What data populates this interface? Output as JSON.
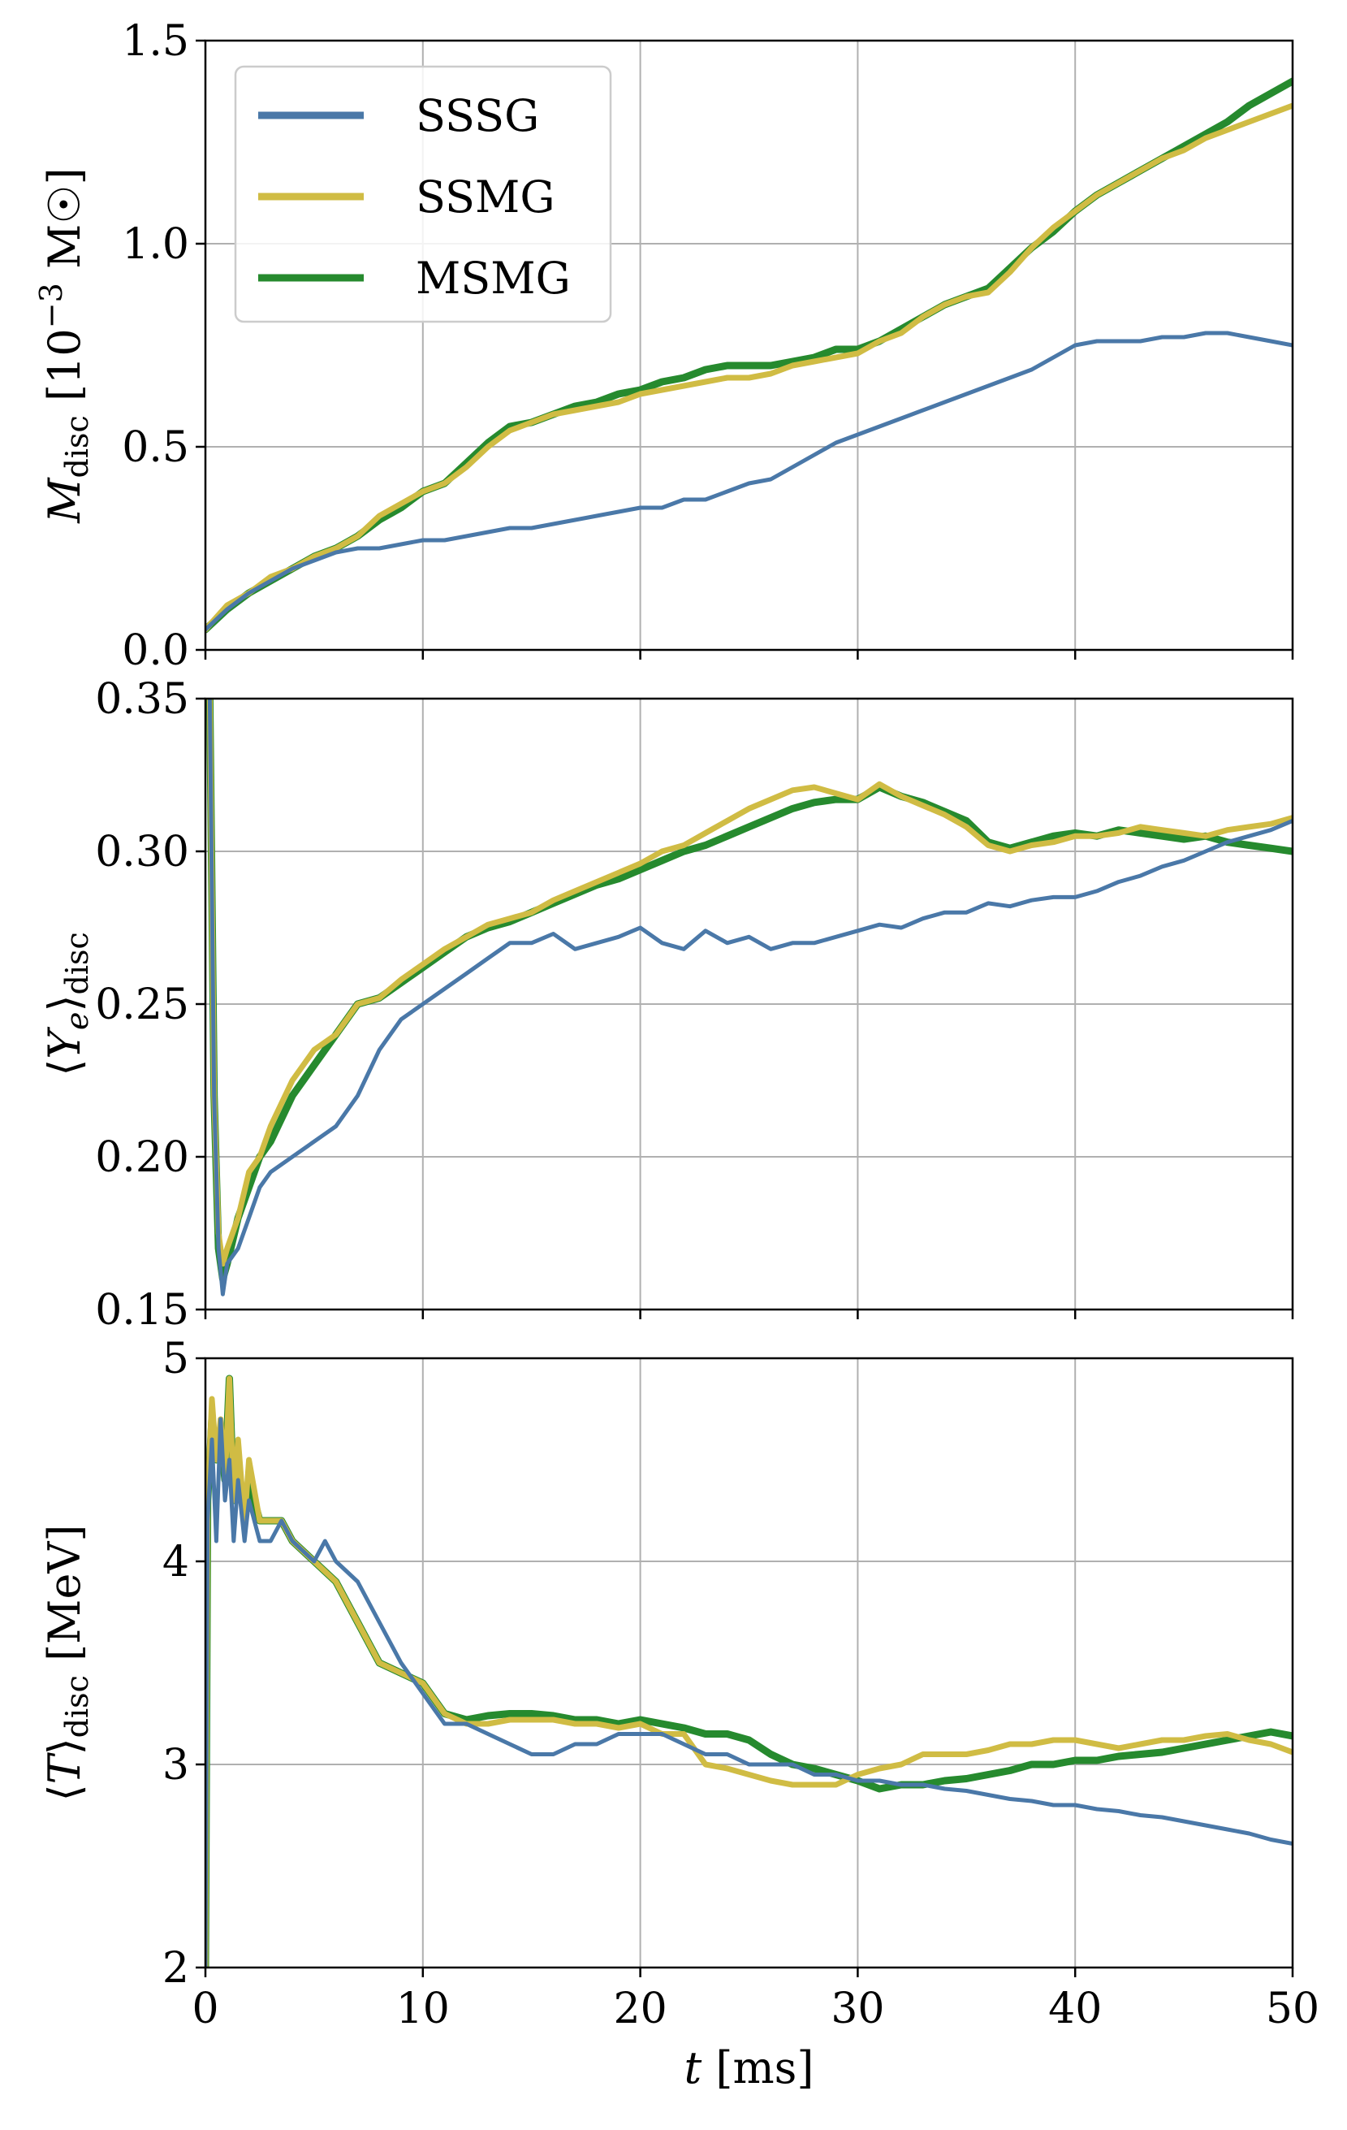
{
  "chart_data": [
    {
      "type": "line",
      "ylabel": "M_disc [10^-3 M☉]",
      "ylabel_parts": {
        "sym": "M",
        "sub": "disc",
        "unit_open": " [10",
        "unit_exp": "−3",
        "unit_close": " M☉]"
      },
      "xlim": [
        0,
        50
      ],
      "ylim": [
        0.0,
        1.5
      ],
      "yticks": [
        "0.0",
        "0.5",
        "1.0",
        "1.5"
      ],
      "xticks": [
        "0",
        "10",
        "20",
        "30",
        "40",
        "50"
      ],
      "grid": true,
      "legend": {
        "placement": "top-left",
        "entries": [
          "SSSG",
          "SSMG",
          "MSMG"
        ]
      },
      "series": [
        {
          "name": "SSSG",
          "x": [
            0,
            1,
            2,
            3,
            4,
            5,
            6,
            7,
            8,
            9,
            10,
            11,
            12,
            13,
            14,
            15,
            16,
            17,
            18,
            19,
            20,
            21,
            22,
            23,
            24,
            25,
            26,
            27,
            28,
            29,
            30,
            31,
            32,
            33,
            34,
            35,
            36,
            37,
            38,
            39,
            40,
            41,
            42,
            43,
            44,
            45,
            46,
            47,
            48,
            49,
            50
          ],
          "y": [
            0.05,
            0.1,
            0.14,
            0.17,
            0.2,
            0.22,
            0.24,
            0.25,
            0.25,
            0.26,
            0.27,
            0.27,
            0.28,
            0.29,
            0.3,
            0.3,
            0.31,
            0.32,
            0.33,
            0.34,
            0.35,
            0.35,
            0.37,
            0.37,
            0.39,
            0.41,
            0.42,
            0.45,
            0.48,
            0.51,
            0.53,
            0.55,
            0.57,
            0.59,
            0.61,
            0.63,
            0.65,
            0.67,
            0.69,
            0.72,
            0.75,
            0.76,
            0.76,
            0.76,
            0.77,
            0.77,
            0.78,
            0.78,
            0.77,
            0.76,
            0.75
          ]
        },
        {
          "name": "SSMG",
          "x": [
            0,
            1,
            2,
            3,
            4,
            5,
            6,
            7,
            8,
            9,
            10,
            11,
            12,
            13,
            14,
            15,
            16,
            17,
            18,
            19,
            20,
            21,
            22,
            23,
            24,
            25,
            26,
            27,
            28,
            29,
            30,
            31,
            32,
            33,
            34,
            35,
            36,
            37,
            38,
            39,
            40,
            41,
            42,
            43,
            44,
            45,
            46,
            47,
            48,
            49,
            50
          ],
          "y": [
            0.05,
            0.11,
            0.14,
            0.18,
            0.2,
            0.23,
            0.25,
            0.28,
            0.33,
            0.36,
            0.39,
            0.41,
            0.45,
            0.5,
            0.54,
            0.56,
            0.58,
            0.59,
            0.6,
            0.61,
            0.63,
            0.64,
            0.65,
            0.66,
            0.67,
            0.67,
            0.68,
            0.7,
            0.71,
            0.72,
            0.73,
            0.76,
            0.78,
            0.82,
            0.85,
            0.87,
            0.88,
            0.93,
            0.99,
            1.04,
            1.08,
            1.12,
            1.15,
            1.18,
            1.21,
            1.23,
            1.26,
            1.28,
            1.3,
            1.32,
            1.34
          ]
        },
        {
          "name": "MSMG",
          "x": [
            0,
            1,
            2,
            3,
            4,
            5,
            6,
            7,
            8,
            9,
            10,
            11,
            12,
            13,
            14,
            15,
            16,
            17,
            18,
            19,
            20,
            21,
            22,
            23,
            24,
            25,
            26,
            27,
            28,
            29,
            30,
            31,
            32,
            33,
            34,
            35,
            36,
            37,
            38,
            39,
            40,
            41,
            42,
            43,
            44,
            45,
            46,
            47,
            48,
            49,
            50
          ],
          "y": [
            0.05,
            0.1,
            0.14,
            0.17,
            0.2,
            0.23,
            0.25,
            0.28,
            0.32,
            0.35,
            0.39,
            0.41,
            0.46,
            0.51,
            0.55,
            0.56,
            0.58,
            0.6,
            0.61,
            0.63,
            0.64,
            0.66,
            0.67,
            0.69,
            0.7,
            0.7,
            0.7,
            0.71,
            0.72,
            0.74,
            0.74,
            0.76,
            0.79,
            0.82,
            0.85,
            0.87,
            0.89,
            0.94,
            0.99,
            1.03,
            1.08,
            1.12,
            1.15,
            1.18,
            1.21,
            1.24,
            1.27,
            1.3,
            1.34,
            1.37,
            1.4
          ]
        }
      ]
    },
    {
      "type": "line",
      "ylabel": "⟨Y_e⟩_disc",
      "ylabel_parts": {
        "sym": "Y",
        "sub_e": "e",
        "sub": "disc"
      },
      "xlim": [
        0,
        50
      ],
      "ylim": [
        0.15,
        0.35
      ],
      "yticks": [
        "0.15",
        "0.20",
        "0.25",
        "0.30",
        "0.35"
      ],
      "grid": true,
      "series": [
        {
          "name": "SSSG",
          "x": [
            0.2,
            0.4,
            0.6,
            0.8,
            1,
            1.5,
            2,
            2.5,
            3,
            4,
            5,
            6,
            7,
            8,
            9,
            10,
            11,
            12,
            13,
            14,
            15,
            16,
            17,
            18,
            19,
            20,
            21,
            22,
            23,
            24,
            25,
            26,
            27,
            28,
            29,
            30,
            31,
            32,
            33,
            34,
            35,
            36,
            37,
            38,
            39,
            40,
            41,
            42,
            43,
            44,
            45,
            46,
            47,
            48,
            49,
            50
          ],
          "y": [
            0.35,
            0.22,
            0.17,
            0.155,
            0.165,
            0.17,
            0.18,
            0.19,
            0.195,
            0.2,
            0.205,
            0.21,
            0.22,
            0.235,
            0.245,
            0.25,
            0.255,
            0.26,
            0.265,
            0.27,
            0.27,
            0.273,
            0.268,
            0.27,
            0.272,
            0.275,
            0.27,
            0.268,
            0.274,
            0.27,
            0.272,
            0.268,
            0.27,
            0.27,
            0.272,
            0.274,
            0.276,
            0.275,
            0.278,
            0.28,
            0.28,
            0.283,
            0.282,
            0.284,
            0.285,
            0.285,
            0.287,
            0.29,
            0.292,
            0.295,
            0.297,
            0.3,
            0.303,
            0.305,
            0.307,
            0.31
          ]
        },
        {
          "name": "SSMG",
          "x": [
            0.2,
            0.4,
            0.6,
            0.8,
            1,
            1.5,
            2,
            2.5,
            3,
            4,
            5,
            6,
            7,
            8,
            9,
            10,
            11,
            12,
            13,
            14,
            15,
            16,
            17,
            18,
            19,
            20,
            21,
            22,
            23,
            24,
            25,
            26,
            27,
            28,
            29,
            30,
            31,
            32,
            33,
            34,
            35,
            36,
            37,
            38,
            39,
            40,
            41,
            42,
            43,
            44,
            45,
            46,
            47,
            48,
            49,
            50
          ],
          "y": [
            0.35,
            0.22,
            0.175,
            0.165,
            0.17,
            0.18,
            0.195,
            0.2,
            0.21,
            0.225,
            0.235,
            0.24,
            0.25,
            0.252,
            0.258,
            0.263,
            0.268,
            0.272,
            0.276,
            0.278,
            0.28,
            0.284,
            0.287,
            0.29,
            0.293,
            0.296,
            0.3,
            0.302,
            0.306,
            0.31,
            0.314,
            0.317,
            0.32,
            0.321,
            0.319,
            0.317,
            0.322,
            0.318,
            0.315,
            0.312,
            0.308,
            0.302,
            0.3,
            0.302,
            0.303,
            0.305,
            0.305,
            0.306,
            0.308,
            0.307,
            0.306,
            0.305,
            0.307,
            0.308,
            0.309,
            0.311
          ]
        },
        {
          "name": "MSMG",
          "x": [
            0.2,
            0.4,
            0.6,
            0.8,
            1,
            1.5,
            2,
            2.5,
            3,
            4,
            5,
            6,
            7,
            8,
            9,
            10,
            11,
            12,
            13,
            14,
            15,
            16,
            17,
            18,
            19,
            20,
            21,
            22,
            23,
            24,
            25,
            26,
            27,
            28,
            29,
            30,
            31,
            32,
            33,
            34,
            35,
            36,
            37,
            38,
            39,
            40,
            41,
            42,
            43,
            44,
            45,
            46,
            47,
            48,
            49,
            50
          ],
          "y": [
            0.35,
            0.22,
            0.17,
            0.16,
            0.165,
            0.18,
            0.19,
            0.2,
            0.205,
            0.22,
            0.23,
            0.24,
            0.25,
            0.252,
            0.257,
            0.262,
            0.267,
            0.272,
            0.275,
            0.277,
            0.28,
            0.283,
            0.286,
            0.289,
            0.291,
            0.294,
            0.297,
            0.3,
            0.302,
            0.305,
            0.308,
            0.311,
            0.314,
            0.316,
            0.317,
            0.317,
            0.321,
            0.318,
            0.316,
            0.313,
            0.31,
            0.303,
            0.301,
            0.303,
            0.305,
            0.306,
            0.305,
            0.307,
            0.306,
            0.305,
            0.304,
            0.305,
            0.303,
            0.302,
            0.301,
            0.3
          ]
        }
      ]
    },
    {
      "type": "line",
      "ylabel": "⟨T⟩_disc [MeV]",
      "ylabel_parts": {
        "sym": "T",
        "sub": "disc",
        "unit": " [MeV]"
      },
      "xlabel": "t [ms]",
      "xlabel_parts": {
        "sym": "t",
        "unit": " [ms]"
      },
      "xlim": [
        0,
        50
      ],
      "ylim": [
        2,
        5
      ],
      "yticks": [
        "2",
        "3",
        "4",
        "5"
      ],
      "xticks": [
        "0",
        "10",
        "20",
        "30",
        "40",
        "50"
      ],
      "grid": true,
      "series": [
        {
          "name": "SSSG",
          "x": [
            0,
            0.1,
            0.3,
            0.5,
            0.7,
            0.9,
            1.1,
            1.3,
            1.5,
            1.8,
            2,
            2.5,
            3,
            3.5,
            4,
            5,
            5.5,
            6,
            7,
            8,
            9,
            10,
            11,
            12,
            13,
            14,
            15,
            16,
            17,
            18,
            19,
            20,
            21,
            22,
            23,
            24,
            25,
            26,
            27,
            28,
            29,
            30,
            31,
            32,
            33,
            34,
            35,
            36,
            37,
            38,
            39,
            40,
            41,
            42,
            43,
            44,
            45,
            46,
            47,
            48,
            49,
            50
          ],
          "y": [
            2.0,
            4.2,
            4.6,
            4.1,
            4.7,
            4.3,
            4.5,
            4.1,
            4.4,
            4.1,
            4.3,
            4.1,
            4.1,
            4.2,
            4.1,
            4.0,
            4.1,
            4.0,
            3.9,
            3.7,
            3.5,
            3.35,
            3.2,
            3.2,
            3.15,
            3.1,
            3.05,
            3.05,
            3.1,
            3.1,
            3.15,
            3.15,
            3.15,
            3.1,
            3.05,
            3.05,
            3.0,
            3.0,
            3.0,
            2.95,
            2.95,
            2.92,
            2.92,
            2.9,
            2.9,
            2.88,
            2.87,
            2.85,
            2.83,
            2.82,
            2.8,
            2.8,
            2.78,
            2.77,
            2.75,
            2.74,
            2.72,
            2.7,
            2.68,
            2.66,
            2.63,
            2.61
          ]
        },
        {
          "name": "SSMG",
          "x": [
            0,
            0.1,
            0.3,
            0.5,
            0.7,
            0.9,
            1.1,
            1.3,
            1.5,
            1.8,
            2,
            2.5,
            3,
            3.5,
            4,
            5,
            6,
            7,
            8,
            9,
            10,
            11,
            12,
            13,
            14,
            15,
            16,
            17,
            18,
            19,
            20,
            21,
            22,
            23,
            24,
            25,
            26,
            27,
            28,
            29,
            30,
            31,
            32,
            33,
            34,
            35,
            36,
            37,
            38,
            39,
            40,
            41,
            42,
            43,
            44,
            45,
            46,
            47,
            48,
            49,
            50
          ],
          "y": [
            2.0,
            4.3,
            4.8,
            4.5,
            4.7,
            4.4,
            4.9,
            4.3,
            4.6,
            4.2,
            4.5,
            4.2,
            4.2,
            4.2,
            4.1,
            4.0,
            3.9,
            3.7,
            3.5,
            3.45,
            3.4,
            3.25,
            3.2,
            3.2,
            3.22,
            3.22,
            3.22,
            3.2,
            3.2,
            3.18,
            3.2,
            3.15,
            3.15,
            3.0,
            2.98,
            2.95,
            2.92,
            2.9,
            2.9,
            2.9,
            2.95,
            2.98,
            3.0,
            3.05,
            3.05,
            3.05,
            3.07,
            3.1,
            3.1,
            3.12,
            3.12,
            3.1,
            3.08,
            3.1,
            3.12,
            3.12,
            3.14,
            3.15,
            3.12,
            3.1,
            3.06
          ]
        },
        {
          "name": "MSMG",
          "x": [
            0,
            0.1,
            0.3,
            0.5,
            0.7,
            0.9,
            1.1,
            1.3,
            1.5,
            1.8,
            2,
            2.5,
            3,
            3.5,
            4,
            5,
            6,
            7,
            8,
            9,
            10,
            11,
            12,
            13,
            14,
            15,
            16,
            17,
            18,
            19,
            20,
            21,
            22,
            23,
            24,
            25,
            26,
            27,
            28,
            29,
            30,
            31,
            32,
            33,
            34,
            35,
            36,
            37,
            38,
            39,
            40,
            41,
            42,
            43,
            44,
            45,
            46,
            47,
            48,
            49,
            50
          ],
          "y": [
            2.0,
            4.3,
            4.7,
            4.5,
            4.6,
            4.4,
            4.9,
            4.3,
            4.5,
            4.2,
            4.4,
            4.2,
            4.2,
            4.2,
            4.1,
            4.0,
            3.9,
            3.7,
            3.5,
            3.45,
            3.4,
            3.25,
            3.22,
            3.24,
            3.25,
            3.25,
            3.24,
            3.22,
            3.22,
            3.2,
            3.22,
            3.2,
            3.18,
            3.15,
            3.15,
            3.12,
            3.05,
            3.0,
            2.98,
            2.95,
            2.92,
            2.88,
            2.9,
            2.9,
            2.92,
            2.93,
            2.95,
            2.97,
            3.0,
            3.0,
            3.02,
            3.02,
            3.04,
            3.05,
            3.06,
            3.08,
            3.1,
            3.12,
            3.14,
            3.16,
            3.14
          ]
        }
      ]
    }
  ],
  "colors": {
    "SSSG": "#4a78a8",
    "SSMG": "#d0bc44",
    "MSMG": "#268a2e",
    "grid": "#b0b0b0"
  }
}
